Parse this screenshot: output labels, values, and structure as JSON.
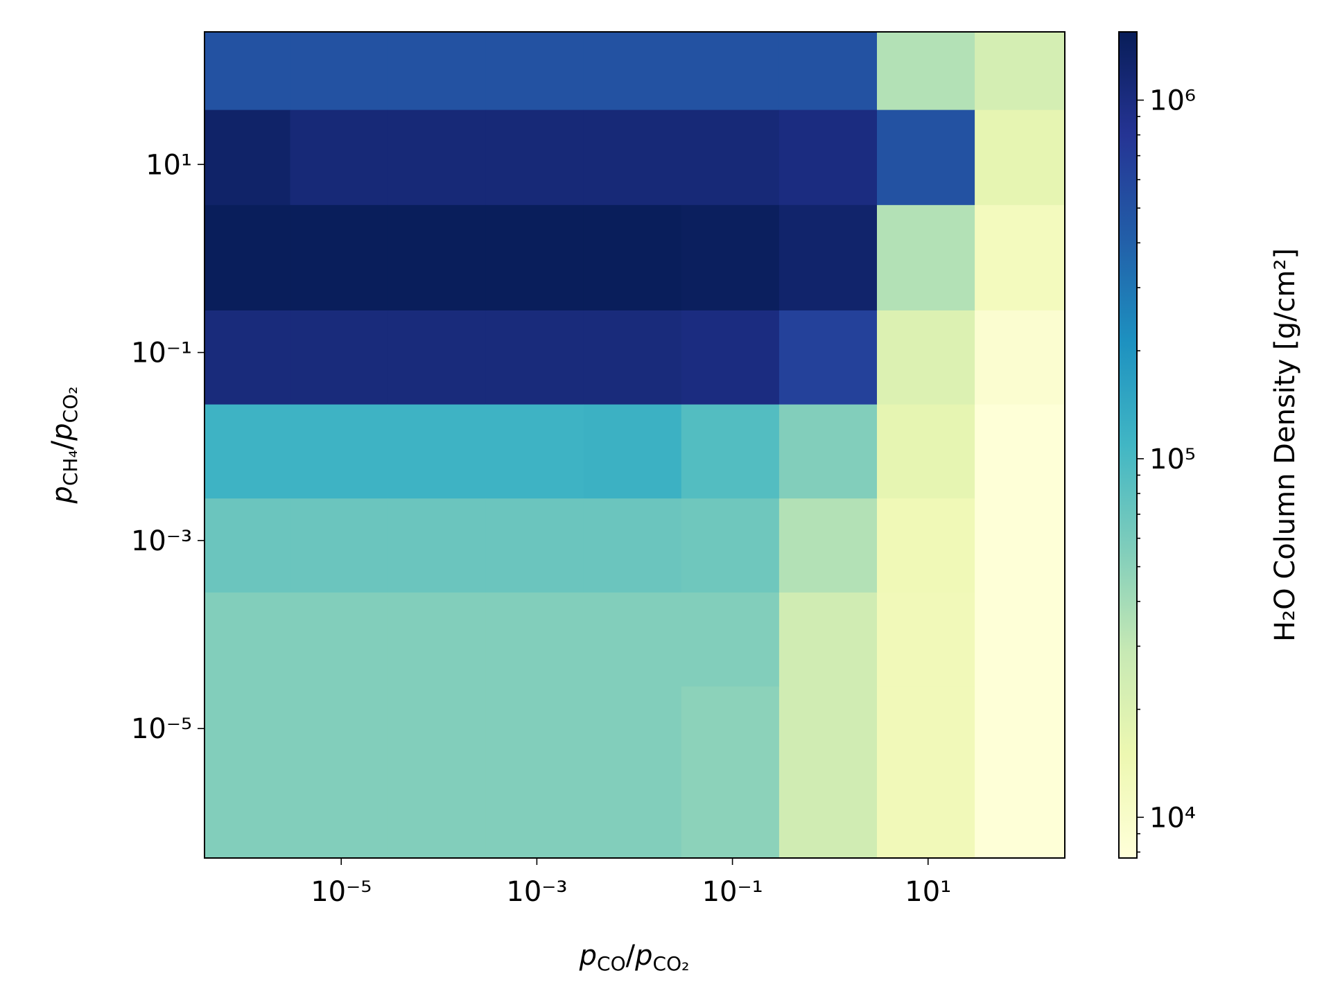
{
  "chart_data": {
    "type": "heatmap",
    "xlabel": [
      "p",
      "CO",
      "/",
      "p",
      "CO₂"
    ],
    "ylabel": [
      "p",
      "CH₄",
      "/",
      "p",
      "CO₂"
    ],
    "colorbar_label": "H₂O Column Density [g/cm²]",
    "colormap": "YlGnBu",
    "xscale": "log",
    "yscale": "log",
    "cscale": "log",
    "xlim": [
      4e-07,
      250
    ],
    "ylim": [
      4.2e-07,
      257
    ],
    "clim": [
      7700,
      1550000
    ],
    "xbins": [
      4e-07,
      3e-06,
      3e-05,
      0.0003,
      0.003,
      0.03,
      0.3,
      3,
      30,
      250
    ],
    "ybins": [
      257,
      38,
      3.7,
      0.28,
      0.028,
      0.0028,
      0.00028,
      2.8e-05,
      3e-06,
      4.2e-07
    ],
    "xticks": [
      {
        "value": 1e-05,
        "label": "10⁻⁵"
      },
      {
        "value": 0.001,
        "label": "10⁻³"
      },
      {
        "value": 0.1,
        "label": "10⁻¹"
      },
      {
        "value": 10,
        "label": "10¹"
      }
    ],
    "yticks": [
      {
        "value": 10,
        "label": "10¹"
      },
      {
        "value": 0.1,
        "label": "10⁻¹"
      },
      {
        "value": 0.001,
        "label": "10⁻³"
      },
      {
        "value": 1e-05,
        "label": "10⁻⁵"
      }
    ],
    "cticks": [
      {
        "value": 10000,
        "label": "10⁴"
      },
      {
        "value": 100000,
        "label": "10⁵"
      },
      {
        "value": 1000000,
        "label": "10⁶"
      }
    ],
    "cminor_ticks": [
      8000,
      9000,
      20000,
      30000,
      40000,
      50000,
      60000,
      70000,
      80000,
      90000,
      200000,
      300000,
      400000,
      500000,
      600000,
      700000,
      800000,
      900000
    ],
    "z": [
      [
        500000,
        500000,
        500000,
        500000,
        500000,
        500000,
        500000,
        35000,
        23000
      ],
      [
        1300000,
        1100000,
        1100000,
        1100000,
        1100000,
        1100000,
        1000000,
        500000,
        17000
      ],
      [
        1500000,
        1500000,
        1500000,
        1500000,
        1500000,
        1450000,
        1250000,
        35000,
        12000
      ],
      [
        1050000,
        1050000,
        1050000,
        1050000,
        1050000,
        1000000,
        650000,
        20000,
        9000
      ],
      [
        115000,
        115000,
        115000,
        115000,
        120000,
        90000,
        55000,
        17000,
        8000
      ],
      [
        70000,
        70000,
        70000,
        70000,
        70000,
        67000,
        35000,
        13500,
        8000
      ],
      [
        55000,
        55000,
        55000,
        55000,
        55000,
        55000,
        25000,
        13000,
        8000
      ],
      [
        55000,
        55000,
        55000,
        55000,
        55000,
        50000,
        25000,
        13000,
        8000
      ],
      [
        55000,
        55000,
        55000,
        55000,
        55000,
        50000,
        25000,
        13000,
        8000
      ]
    ]
  }
}
